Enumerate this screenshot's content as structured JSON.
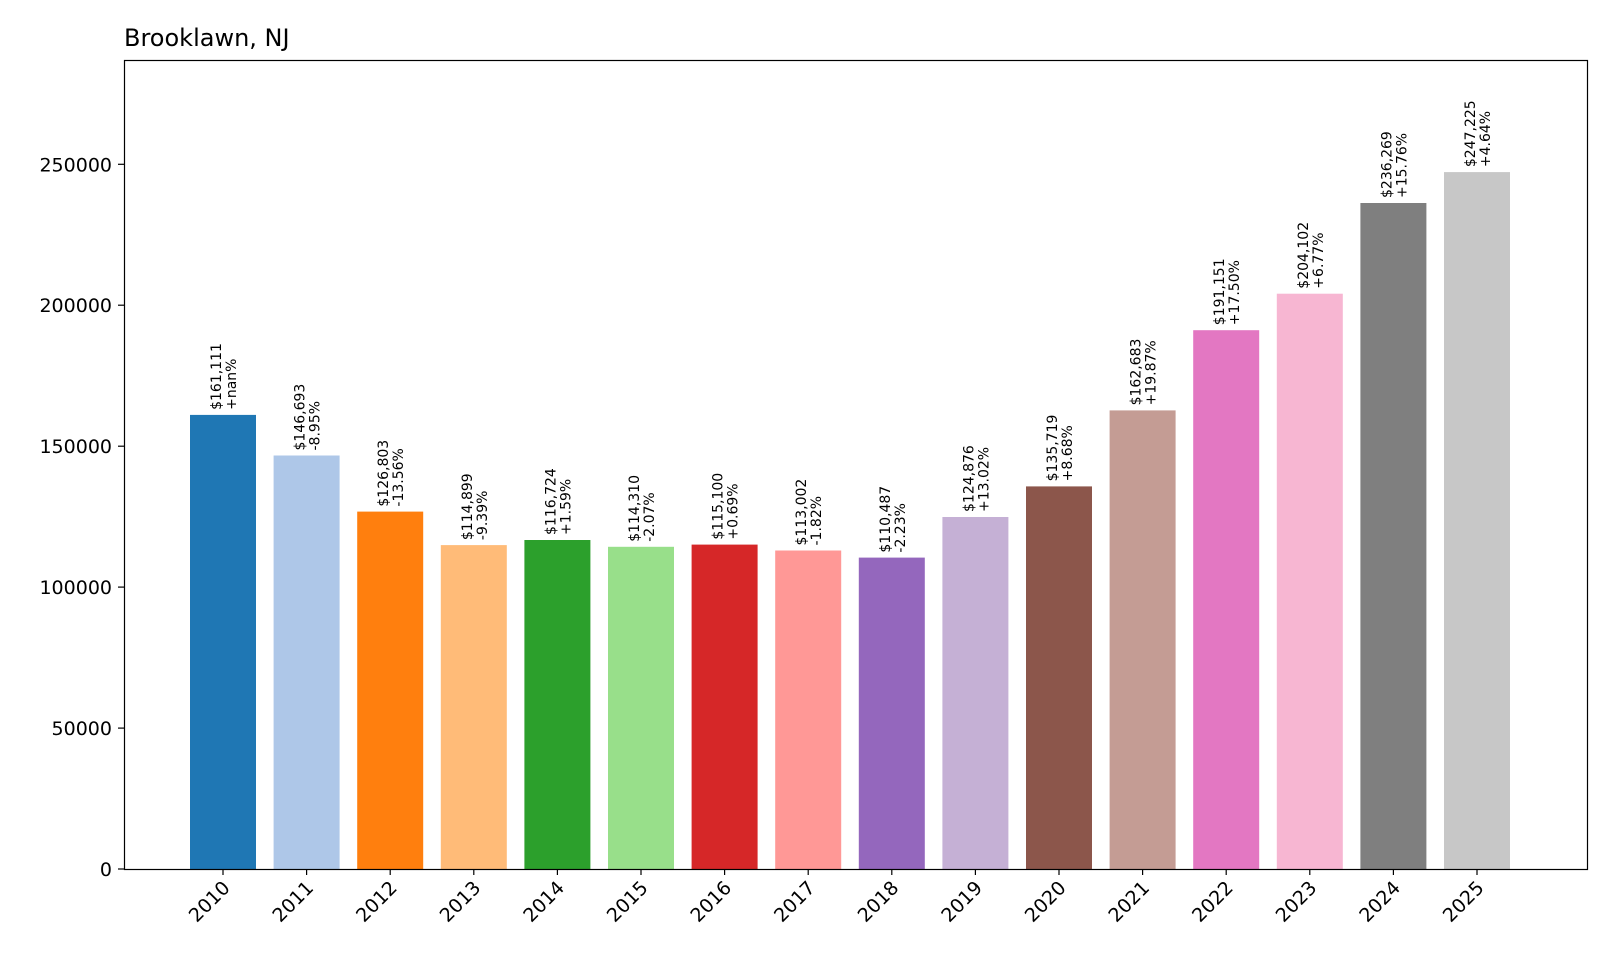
{
  "chart_data": {
    "type": "bar",
    "title": "Brooklawn, NJ",
    "xlabel": "",
    "ylabel": "",
    "ylim": [
      0,
      287000
    ],
    "yticks": [
      0,
      50000,
      100000,
      150000,
      200000,
      250000
    ],
    "grid": false,
    "categories": [
      "2010",
      "2011",
      "2012",
      "2013",
      "2014",
      "2015",
      "2016",
      "2017",
      "2018",
      "2019",
      "2020",
      "2021",
      "2022",
      "2023",
      "2024",
      "2025"
    ],
    "values": [
      161111,
      146693,
      126803,
      114899,
      116724,
      114310,
      115100,
      113002,
      110487,
      124876,
      135719,
      162683,
      191151,
      204102,
      236269,
      247225
    ],
    "value_labels": [
      "$161,111",
      "$146,693",
      "$126,803",
      "$114,899",
      "$116,724",
      "$114,310",
      "$115,100",
      "$113,002",
      "$110,487",
      "$124,876",
      "$135,719",
      "$162,683",
      "$191,151",
      "$204,102",
      "$236,269",
      "$247,225"
    ],
    "change_labels": [
      "+nan%",
      "-8.95%",
      "-13.56%",
      "-9.39%",
      "+1.59%",
      "-2.07%",
      "+0.69%",
      "-1.82%",
      "-2.23%",
      "+13.02%",
      "+8.68%",
      "+19.87%",
      "+17.50%",
      "+6.77%",
      "+15.76%",
      "+4.64%"
    ],
    "colors": [
      "#1f77b4",
      "#aec7e8",
      "#ff7f0e",
      "#ffbb78",
      "#2ca02c",
      "#98df8a",
      "#d62728",
      "#ff9896",
      "#9467bd",
      "#c5b0d5",
      "#8c564b",
      "#c49c94",
      "#e377c2",
      "#f7b6d2",
      "#7f7f7f",
      "#c7c7c7"
    ]
  }
}
